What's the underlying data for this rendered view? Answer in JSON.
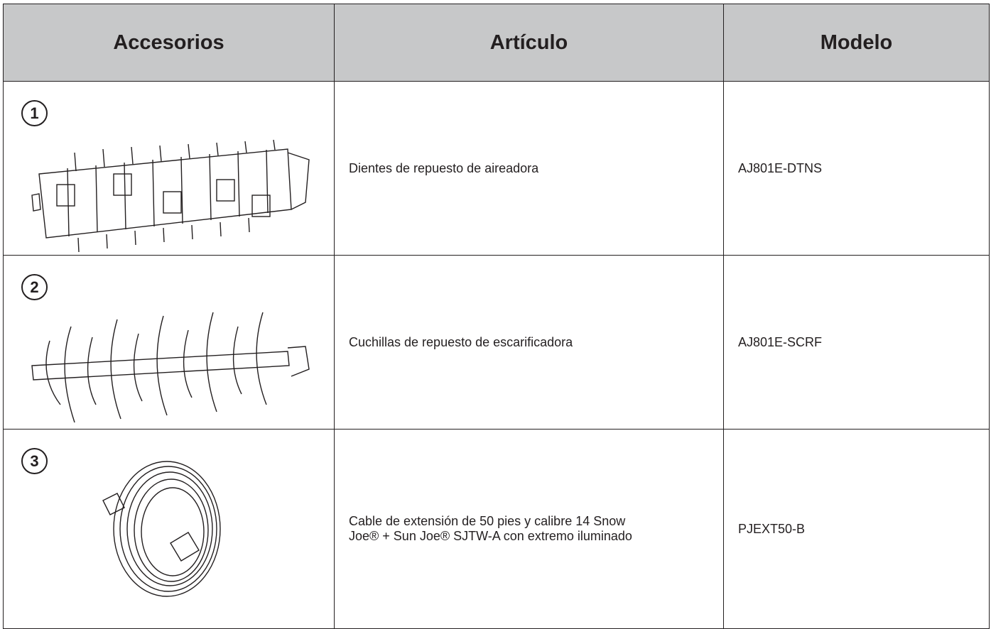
{
  "table": {
    "headers": [
      "Accesorios",
      "Artículo",
      "Modelo"
    ],
    "rows": [
      {
        "number": "1",
        "item": "Dientes de repuesto de aireadora",
        "model": "AJ801E-DTNS"
      },
      {
        "number": "2",
        "item": "Cuchillas de repuesto de escarificadora",
        "model": "AJ801E-SCRF"
      },
      {
        "number": "3",
        "item": "Cable de extensión de 50 pies y calibre 14 Snow Joe® + Sun Joe® SJTW-A con extremo iluminado",
        "model": "PJEXT50-B"
      }
    ]
  }
}
